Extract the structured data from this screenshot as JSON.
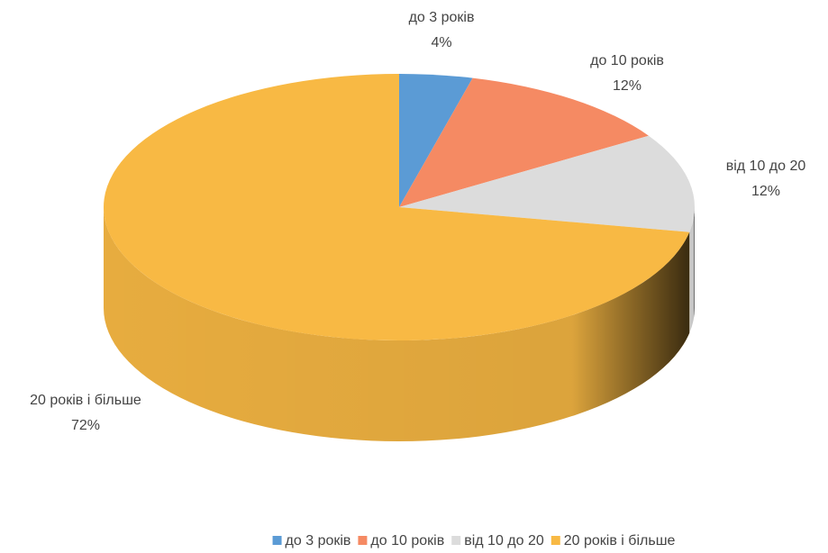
{
  "chart_data": {
    "type": "pie",
    "categories": [
      "до 3 років",
      "до 10 років",
      "від 10 до 20",
      "20 років і більше"
    ],
    "values": [
      4,
      12,
      12,
      72
    ],
    "value_labels": [
      "4%",
      "12%",
      "12%",
      "72%"
    ],
    "colors": [
      "#5b9bd5",
      "#f58a63",
      "#dcdcdc",
      "#f8b944"
    ],
    "legend": "bottom"
  }
}
